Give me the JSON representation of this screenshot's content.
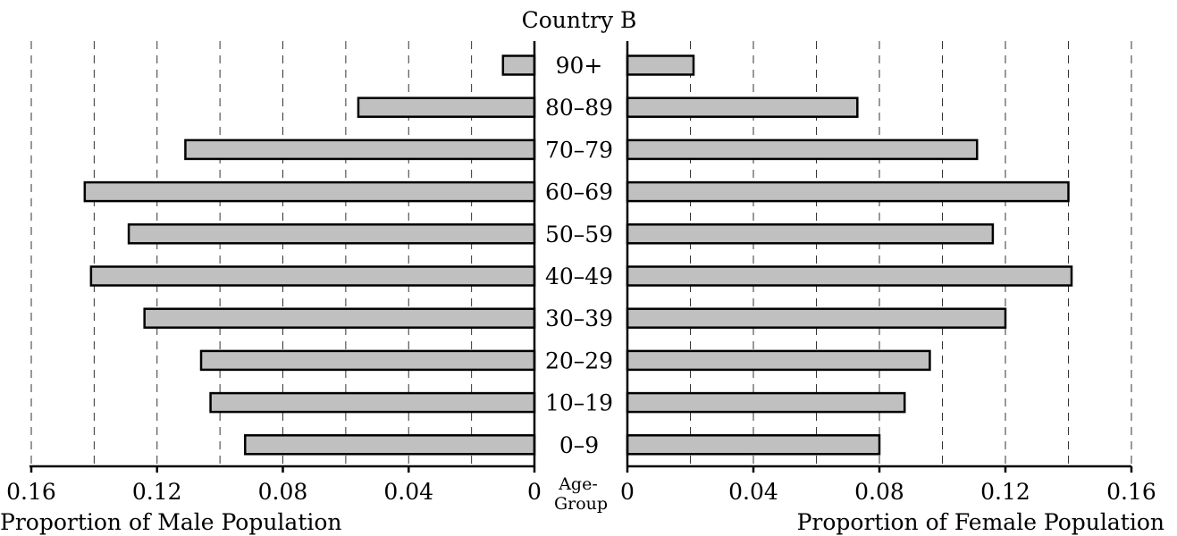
{
  "chart_data": {
    "type": "bar",
    "orientation": "horizontal",
    "layout": "population-pyramid",
    "title": "Country B",
    "age_axis_label": "Age-Group",
    "categories": [
      "90+",
      "80–89",
      "70–79",
      "60–69",
      "50–59",
      "40–49",
      "30–39",
      "20–29",
      "10–19",
      "0–9"
    ],
    "male": {
      "xlabel": "Proportion of Male Population",
      "ticks": [
        "0.16",
        "0.12",
        "0.08",
        "0.04",
        "0"
      ],
      "xlim": [
        0,
        0.16
      ],
      "direction": "right-to-left",
      "values": [
        0.01,
        0.056,
        0.111,
        0.143,
        0.129,
        0.141,
        0.124,
        0.106,
        0.103,
        0.092
      ]
    },
    "female": {
      "xlabel": "Proportion of Female Population",
      "ticks": [
        "0",
        "0.04",
        "0.08",
        "0.12",
        "0.16"
      ],
      "xlim": [
        0,
        0.16
      ],
      "direction": "left-to-right",
      "values": [
        0.021,
        0.073,
        0.111,
        0.14,
        0.116,
        0.141,
        0.12,
        0.096,
        0.088,
        0.08
      ]
    },
    "grid": true,
    "grid_style": "dashed vertical",
    "bar_color": "#c0c0c0",
    "bar_edge_color": "#000000"
  }
}
